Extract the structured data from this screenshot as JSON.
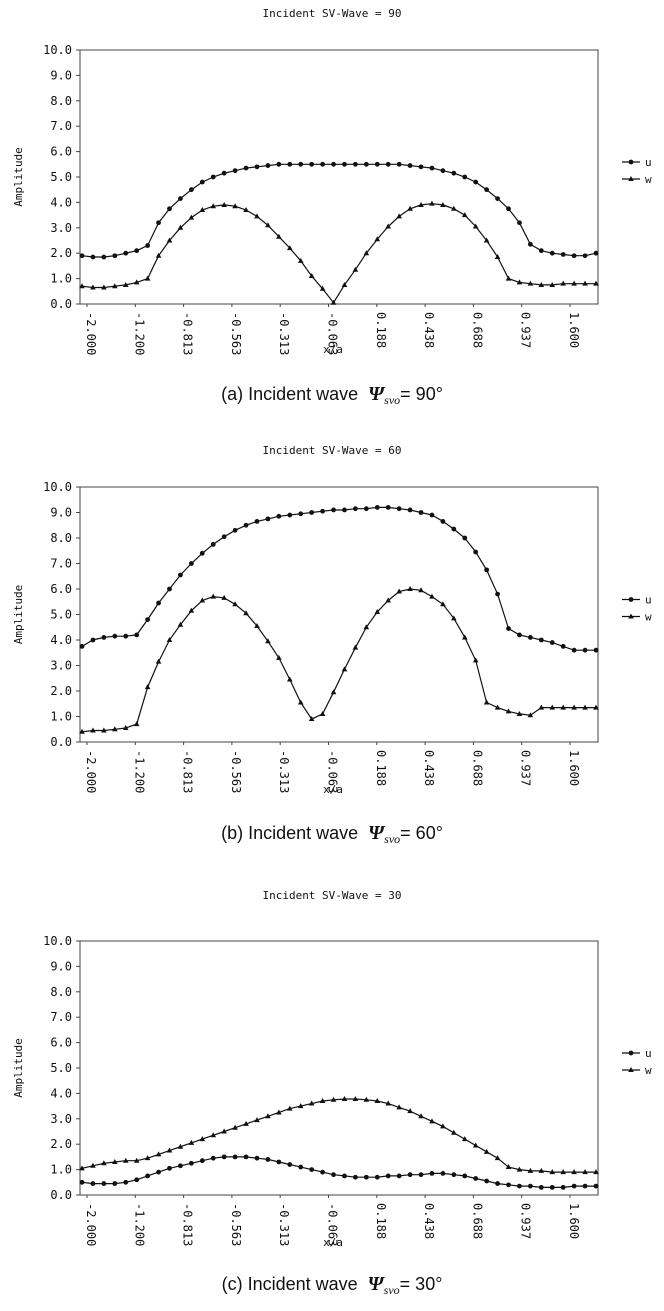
{
  "legend_labels": [
    "u",
    "w"
  ],
  "chart_data": [
    {
      "type": "line",
      "title": "Incident SV-Wave = 90",
      "xlabel": "x/a",
      "ylabel": "Amplitude",
      "ylim": [
        0.0,
        10.0
      ],
      "yticks": [
        "0.0",
        "1.0",
        "2.0",
        "3.0",
        "4.0",
        "5.0",
        "6.0",
        "7.0",
        "8.0",
        "9.0",
        "10.0"
      ],
      "xticks": [
        "-2.000",
        "-1.200",
        "-0.813",
        "-0.563",
        "-0.313",
        "-0.063",
        "0.188",
        "0.438",
        "0.688",
        "0.937",
        "1.600"
      ],
      "legend_position": "right",
      "caption": {
        "prefix": "(a) Incident wave",
        "symbol": "Ψ",
        "sub": "svo",
        "suffix": "= 90°"
      },
      "series": [
        {
          "name": "u",
          "marker": "circle",
          "values": [
            1.9,
            1.85,
            1.85,
            1.9,
            2.0,
            2.1,
            2.3,
            3.2,
            3.75,
            4.15,
            4.5,
            4.8,
            5.0,
            5.15,
            5.25,
            5.35,
            5.4,
            5.45,
            5.5,
            5.5,
            5.5,
            5.5,
            5.5,
            5.5,
            5.5,
            5.5,
            5.5,
            5.5,
            5.5,
            5.5,
            5.45,
            5.4,
            5.35,
            5.25,
            5.15,
            5.0,
            4.8,
            4.5,
            4.15,
            3.75,
            3.2,
            2.35,
            2.1,
            2.0,
            1.95,
            1.9,
            1.9,
            2.0
          ]
        },
        {
          "name": "w",
          "marker": "triangle",
          "values": [
            0.7,
            0.65,
            0.65,
            0.7,
            0.75,
            0.85,
            1.0,
            1.9,
            2.5,
            3.0,
            3.4,
            3.7,
            3.85,
            3.9,
            3.85,
            3.7,
            3.45,
            3.1,
            2.65,
            2.2,
            1.7,
            1.1,
            0.6,
            0.05,
            0.75,
            1.35,
            2.0,
            2.55,
            3.05,
            3.45,
            3.75,
            3.9,
            3.95,
            3.9,
            3.75,
            3.5,
            3.05,
            2.5,
            1.85,
            1.0,
            0.85,
            0.8,
            0.75,
            0.75,
            0.8,
            0.8,
            0.8,
            0.8
          ]
        }
      ]
    },
    {
      "type": "line",
      "title": "Incident SV-Wave = 60",
      "xlabel": "x/a",
      "ylabel": "Amplitude",
      "ylim": [
        0.0,
        10.0
      ],
      "yticks": [
        "0.0",
        "1.0",
        "2.0",
        "3.0",
        "4.0",
        "5.0",
        "6.0",
        "7.0",
        "8.0",
        "9.0",
        "10.0"
      ],
      "xticks": [
        "-2.000",
        "-1.200",
        "-0.813",
        "-0.563",
        "-0.313",
        "-0.063",
        "0.188",
        "0.438",
        "0.688",
        "0.937",
        "1.600"
      ],
      "legend_position": "right",
      "caption": {
        "prefix": "(b) Incident wave",
        "symbol": "Ψ",
        "sub": "svo",
        "suffix": "= 60°"
      },
      "series": [
        {
          "name": "u",
          "marker": "circle",
          "values": [
            3.75,
            4.0,
            4.1,
            4.15,
            4.15,
            4.2,
            4.8,
            5.45,
            6.0,
            6.55,
            7.0,
            7.4,
            7.75,
            8.05,
            8.3,
            8.5,
            8.65,
            8.75,
            8.85,
            8.9,
            8.95,
            9.0,
            9.05,
            9.1,
            9.1,
            9.15,
            9.15,
            9.2,
            9.2,
            9.15,
            9.1,
            9.0,
            8.9,
            8.65,
            8.35,
            8.0,
            7.45,
            6.75,
            5.8,
            4.45,
            4.2,
            4.1,
            4.0,
            3.9,
            3.75,
            3.6,
            3.6,
            3.6
          ]
        },
        {
          "name": "w",
          "marker": "triangle",
          "values": [
            0.4,
            0.45,
            0.45,
            0.5,
            0.55,
            0.7,
            2.15,
            3.15,
            4.0,
            4.6,
            5.15,
            5.55,
            5.7,
            5.65,
            5.4,
            5.05,
            4.55,
            3.95,
            3.3,
            2.45,
            1.55,
            0.9,
            1.1,
            1.95,
            2.85,
            3.7,
            4.5,
            5.1,
            5.55,
            5.9,
            6.0,
            5.95,
            5.7,
            5.4,
            4.85,
            4.1,
            3.2,
            1.55,
            1.35,
            1.2,
            1.1,
            1.05,
            1.35,
            1.35,
            1.35,
            1.35,
            1.35,
            1.35
          ]
        }
      ]
    },
    {
      "type": "line",
      "title": "Incident SV-Wave = 30",
      "xlabel": "x/a",
      "ylabel": "Amplitude",
      "ylim": [
        0.0,
        10.0
      ],
      "yticks": [
        "0.0",
        "1.0",
        "2.0",
        "3.0",
        "4.0",
        "5.0",
        "6.0",
        "7.0",
        "8.0",
        "9.0",
        "10.0"
      ],
      "xticks": [
        "-2.000",
        "-1.200",
        "-0.813",
        "-0.563",
        "-0.313",
        "-0.063",
        "0.188",
        "0.438",
        "0.688",
        "0.937",
        "1.600"
      ],
      "legend_position": "right",
      "caption": {
        "prefix": "(c) Incident wave",
        "symbol": "Ψ",
        "sub": "svo",
        "suffix": "= 30°"
      },
      "series": [
        {
          "name": "u",
          "marker": "circle",
          "values": [
            0.5,
            0.45,
            0.45,
            0.45,
            0.5,
            0.6,
            0.75,
            0.9,
            1.05,
            1.15,
            1.25,
            1.35,
            1.45,
            1.5,
            1.5,
            1.5,
            1.45,
            1.4,
            1.3,
            1.2,
            1.1,
            1.0,
            0.9,
            0.8,
            0.75,
            0.7,
            0.7,
            0.7,
            0.75,
            0.75,
            0.8,
            0.8,
            0.85,
            0.85,
            0.8,
            0.75,
            0.65,
            0.55,
            0.45,
            0.4,
            0.35,
            0.35,
            0.3,
            0.3,
            0.3,
            0.35,
            0.35,
            0.35
          ]
        },
        {
          "name": "w",
          "marker": "triangle",
          "values": [
            1.05,
            1.15,
            1.25,
            1.3,
            1.35,
            1.35,
            1.45,
            1.6,
            1.75,
            1.9,
            2.05,
            2.2,
            2.35,
            2.5,
            2.65,
            2.8,
            2.95,
            3.1,
            3.25,
            3.4,
            3.5,
            3.6,
            3.7,
            3.75,
            3.78,
            3.78,
            3.75,
            3.7,
            3.6,
            3.45,
            3.3,
            3.1,
            2.9,
            2.7,
            2.45,
            2.2,
            1.95,
            1.7,
            1.45,
            1.1,
            1.0,
            0.95,
            0.95,
            0.9,
            0.9,
            0.9,
            0.9,
            0.9
          ]
        }
      ]
    }
  ]
}
